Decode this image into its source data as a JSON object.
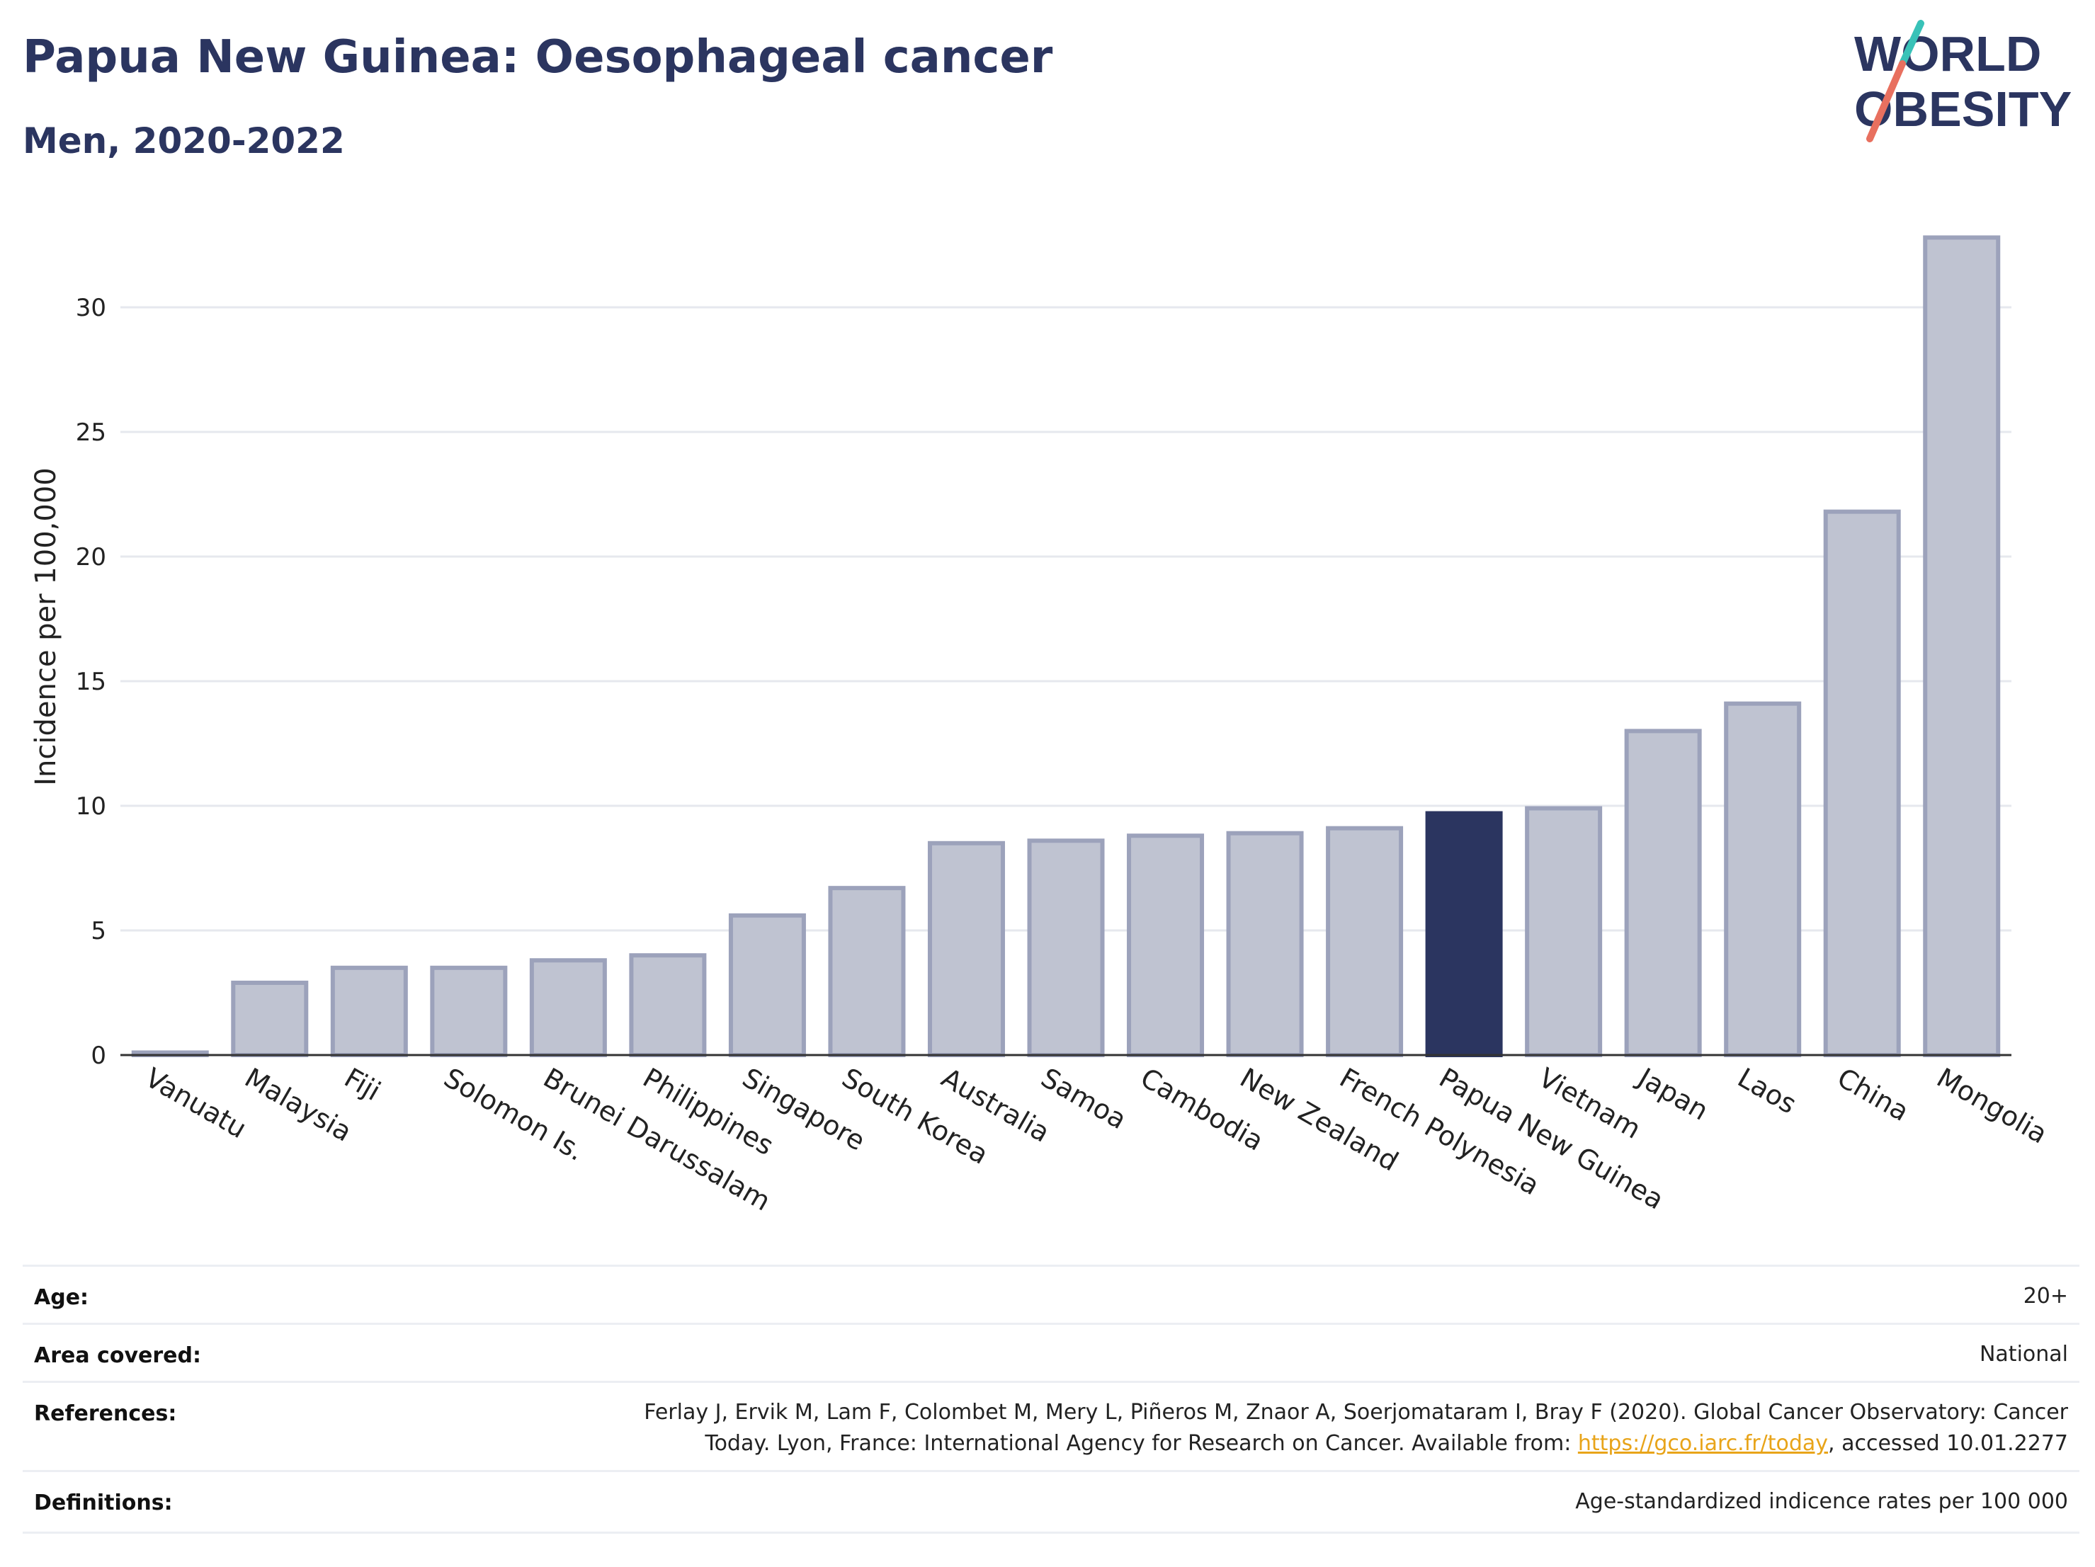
{
  "header": {
    "title": "Papua New Guinea: Oesophageal cancer",
    "subtitle": "Men, 2020-2022"
  },
  "logo": {
    "line1": "WORLD",
    "line2": "OBESITY",
    "slash_colors": [
      "#39c2b8",
      "#e8705f"
    ]
  },
  "colors": {
    "bar": "#bfc3d1",
    "bar_edge": "#9ca2bb",
    "highlight": "#2b3560",
    "grid": "#e6e8ee",
    "axis": "#333333"
  },
  "chart_data": {
    "type": "bar",
    "title": "Papua New Guinea: Oesophageal cancer",
    "subtitle": "Men, 2020-2022",
    "xlabel": "",
    "ylabel": "Incidence per 100,000",
    "ylim": [
      0,
      34
    ],
    "yticks": [
      0,
      5,
      10,
      15,
      20,
      25,
      30
    ],
    "grid": true,
    "highlight": "Papua New Guinea",
    "categories": [
      "Vanuatu",
      "Malaysia",
      "Fiji",
      "Solomon Is.",
      "Brunei Darussalam",
      "Philippines",
      "Singapore",
      "South Korea",
      "Australia",
      "Samoa",
      "Cambodia",
      "New Zealand",
      "French Polynesia",
      "Papua New Guinea",
      "Vietnam",
      "Japan",
      "Laos",
      "China",
      "Mongolia"
    ],
    "values": [
      0.1,
      2.9,
      3.5,
      3.5,
      3.8,
      4.0,
      5.6,
      6.7,
      8.5,
      8.6,
      8.8,
      8.9,
      9.1,
      9.7,
      9.9,
      13.0,
      14.1,
      21.8,
      32.8
    ]
  },
  "info": {
    "age_label": "Age:",
    "age_value": "20+",
    "area_label": "Area covered:",
    "area_value": "National",
    "references_label": "References:",
    "references_line1": "Ferlay J, Ervik M, Lam F, Colombet M, Mery L, Piñeros M, Znaor A, Soerjomataram I, Bray F (2020). Global Cancer Observatory: Cancer",
    "references_line2_pre": "Today. Lyon, France: International Agency for Research on Cancer. Available from: ",
    "references_link": "https://gco.iarc.fr/today",
    "references_line2_post": ", accessed 10.01.2277",
    "definitions_label": "Definitions:",
    "definitions_value": "Age-standardized indicence rates per 100 000"
  }
}
